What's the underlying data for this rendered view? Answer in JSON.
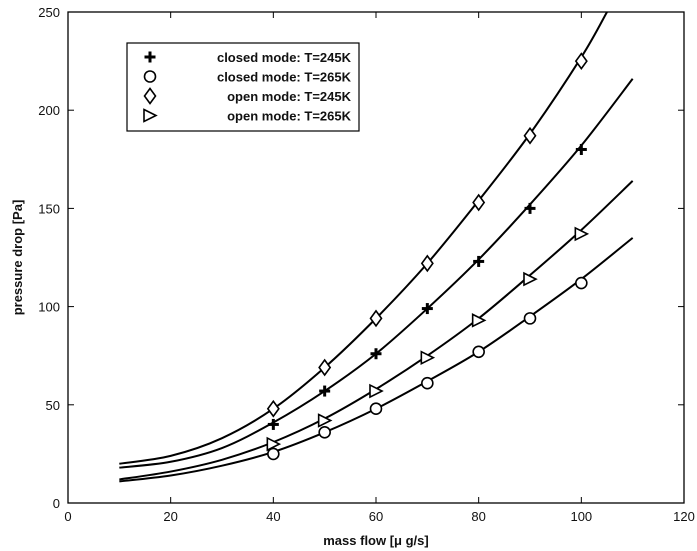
{
  "chart_data": {
    "type": "scatter",
    "title": "",
    "xlabel": "mass flow [μ g/s]",
    "ylabel": "pressure drop [Pa]",
    "xlim": [
      0,
      120
    ],
    "ylim": [
      0,
      250
    ],
    "xticks": [
      0,
      20,
      40,
      60,
      80,
      100,
      120
    ],
    "yticks": [
      0,
      50,
      100,
      150,
      200,
      250
    ],
    "grid": false,
    "legend_position": "top-left",
    "series": [
      {
        "name": "closed mode: T=245K",
        "marker": "plus",
        "x": [
          40,
          50,
          60,
          70,
          80,
          90,
          100
        ],
        "y": [
          40,
          57,
          76,
          99,
          123,
          150,
          180
        ],
        "fit_x": [
          10,
          20,
          30,
          40,
          50,
          60,
          70,
          80,
          90,
          100,
          110
        ],
        "fit_y": [
          18,
          21,
          28,
          41,
          57,
          76,
          99,
          124,
          152,
          182,
          216
        ]
      },
      {
        "name": "closed mode: T=265K",
        "marker": "circle",
        "x": [
          40,
          50,
          60,
          70,
          80,
          90,
          100
        ],
        "y": [
          25,
          36,
          48,
          61,
          77,
          94,
          112
        ],
        "fit_x": [
          10,
          20,
          30,
          40,
          50,
          60,
          70,
          80,
          90,
          100,
          110
        ],
        "fit_y": [
          11,
          14,
          19,
          26,
          36,
          48,
          62,
          77,
          95,
          114,
          135
        ]
      },
      {
        "name": "open mode: T=245K",
        "marker": "diamond",
        "x": [
          40,
          50,
          60,
          70,
          80,
          90,
          100
        ],
        "y": [
          48,
          69,
          94,
          122,
          153,
          187,
          225
        ],
        "fit_x": [
          10,
          20,
          30,
          40,
          50,
          60,
          70,
          80,
          90,
          100,
          105
        ],
        "fit_y": [
          20,
          24,
          33,
          48,
          69,
          94,
          122,
          154,
          188,
          227,
          250
        ]
      },
      {
        "name": "open mode: T=265K",
        "marker": "triangle-right",
        "x": [
          40,
          50,
          60,
          70,
          80,
          90,
          100
        ],
        "y": [
          30,
          42,
          57,
          74,
          93,
          114,
          137
        ],
        "fit_x": [
          10,
          20,
          30,
          40,
          50,
          60,
          70,
          80,
          90,
          100,
          110
        ],
        "fit_y": [
          12,
          16,
          22,
          31,
          43,
          58,
          75,
          94,
          116,
          139,
          164
        ]
      }
    ]
  }
}
